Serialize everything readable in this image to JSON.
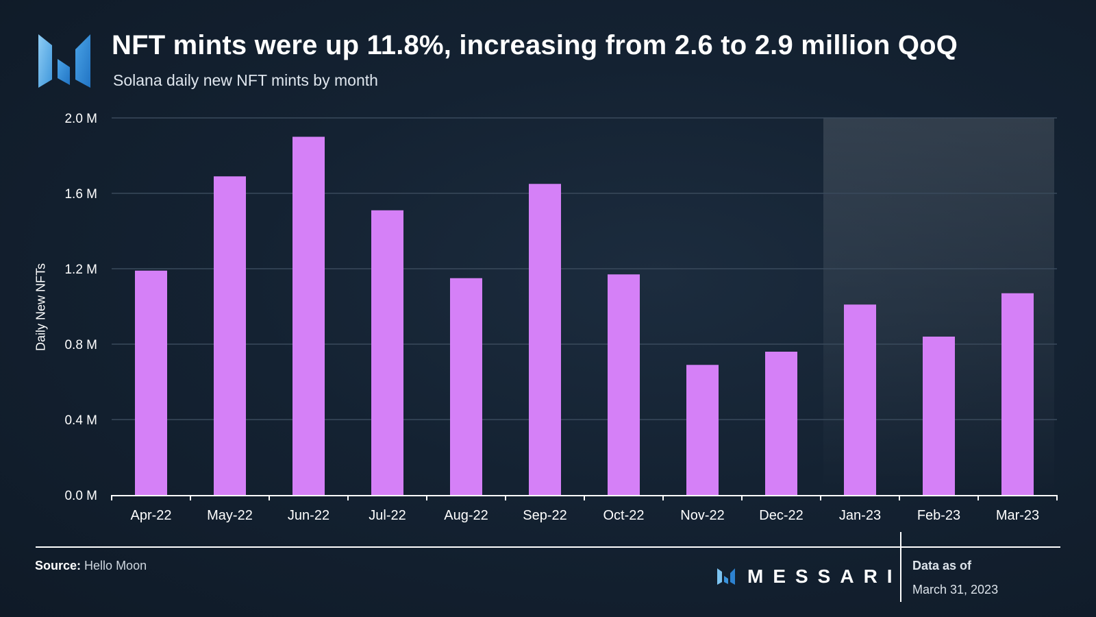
{
  "header": {
    "title": "NFT mints were up 11.8%, increasing from 2.6 to 2.9 million QoQ",
    "subtitle": "Solana daily new NFT mints by month",
    "logo_icon": "messari-m-logo-icon"
  },
  "chart_data": {
    "type": "bar",
    "title": "NFT mints were up 11.8%, increasing from 2.6 to 2.9 million QoQ",
    "subtitle": "Solana daily new NFT mints by month",
    "xlabel": "",
    "ylabel": "Daily New NFTs",
    "categories": [
      "Apr-22",
      "May-22",
      "Jun-22",
      "Jul-22",
      "Aug-22",
      "Sep-22",
      "Oct-22",
      "Nov-22",
      "Dec-22",
      "Jan-23",
      "Feb-23",
      "Mar-23"
    ],
    "values": [
      1.19,
      1.69,
      1.9,
      1.51,
      1.15,
      1.65,
      1.17,
      0.69,
      0.76,
      1.01,
      0.84,
      1.07
    ],
    "value_unit": "M",
    "ylim": [
      0,
      2.0
    ],
    "yticks": [
      0.0,
      0.4,
      0.8,
      1.2,
      1.6,
      2.0
    ],
    "ytick_labels": [
      "0.0 M",
      "0.4 M",
      "0.8 M",
      "1.2 M",
      "1.6 M",
      "2.0 M"
    ],
    "grid": true,
    "highlight_categories": [
      "Jan-23",
      "Feb-23",
      "Mar-23"
    ],
    "bar_color": "#d580f7",
    "highlight_color": "#ffffff",
    "grid_color": "#3a4a5c"
  },
  "footer": {
    "source_label": "Source:",
    "source_value": "Hello Moon",
    "brand": "MESSARI",
    "brand_icon": "messari-m-logo-icon",
    "asof_label": "Data as of",
    "asof_date": "March 31, 2023"
  }
}
